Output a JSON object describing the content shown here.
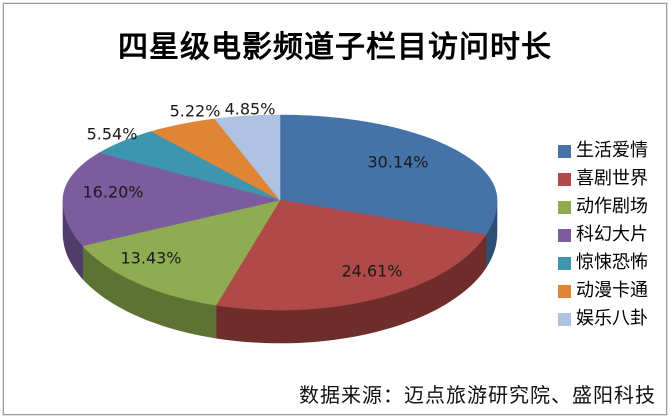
{
  "title": "四星级电影频道子栏目访问时长",
  "source_note": "数据来源：迈点旅游研究院、盛阳科技",
  "frame": {
    "border_color": "#9d9d9d",
    "background": "#ffffff"
  },
  "chart_data": {
    "type": "pie",
    "is_3d": true,
    "title": "四星级电影频道子栏目访问时长",
    "legend_position": "right",
    "start_angle_deg": 0,
    "direction": "clockwise",
    "categories": [
      "生活爱情",
      "喜剧世界",
      "动作剧场",
      "科幻大片",
      "惊悚恐怖",
      "动漫卡通",
      "娱乐八卦"
    ],
    "values": [
      30.14,
      24.61,
      13.43,
      16.2,
      5.54,
      5.22,
      4.85
    ],
    "slices": [
      {
        "label": "生活爱情",
        "value_pct": 30.14,
        "display": "30.14%",
        "color": "#4572A7",
        "wall_color": "#2E4E74"
      },
      {
        "label": "喜剧世界",
        "value_pct": 24.61,
        "display": "24.61%",
        "color": "#AF4A48",
        "wall_color": "#6E2C2A"
      },
      {
        "label": "动作剧场",
        "value_pct": 13.43,
        "display": "13.43%",
        "color": "#8FAC52",
        "wall_color": "#5D7334"
      },
      {
        "label": "科幻大片",
        "value_pct": 16.2,
        "display": "16.20%",
        "color": "#7B5C9D",
        "wall_color": "#503C68"
      },
      {
        "label": "惊悚恐怖",
        "value_pct": 5.54,
        "display": "5.54%",
        "color": "#3D96AE",
        "wall_color": "#2A6A7C"
      },
      {
        "label": "动漫卡通",
        "value_pct": 5.22,
        "display": "5.22%",
        "color": "#E08435",
        "wall_color": "#9E5A20"
      },
      {
        "label": "娱乐八卦",
        "value_pct": 4.85,
        "display": "4.85%",
        "color": "#AFC2E2",
        "wall_color": "#7A8FB0"
      }
    ]
  }
}
